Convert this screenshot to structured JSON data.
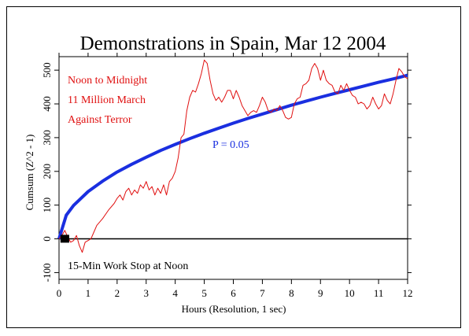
{
  "chart_data": {
    "type": "line",
    "title": "Demonstrations in Spain, Mar 12 2004",
    "xlabel": "Hours (Resolution, 1 sec)",
    "ylabel": "Cumsum (Z^2 - 1)",
    "xlim": [
      0,
      12
    ],
    "ylim": [
      -120,
      540
    ],
    "x_ticks": [
      0,
      1,
      2,
      3,
      4,
      5,
      6,
      7,
      8,
      9,
      10,
      11,
      12
    ],
    "y_ticks": [
      -100,
      0,
      100,
      200,
      300,
      400,
      500
    ],
    "grid": false,
    "annotations": {
      "event_lines": [
        "Noon to Midnight",
        "11 Million March",
        "Against Terror"
      ],
      "probability": "P = 0.05",
      "note": "15-Min Work Stop at Noon"
    },
    "colors": {
      "cumsum": "#e01010",
      "probability_envelope": "#1a2fe0",
      "zero_line": "#000000",
      "annotation_red": "#e01010",
      "annotation_blue": "#1a2fe0"
    },
    "series": [
      {
        "key": "cumsum",
        "x": [
          0,
          0.1,
          0.2,
          0.3,
          0.4,
          0.5,
          0.6,
          0.7,
          0.8,
          0.9,
          1.0,
          1.1,
          1.2,
          1.3,
          1.5,
          1.7,
          1.9,
          2.0,
          2.1,
          2.2,
          2.3,
          2.4,
          2.5,
          2.6,
          2.7,
          2.8,
          2.9,
          3.0,
          3.1,
          3.2,
          3.3,
          3.4,
          3.5,
          3.6,
          3.7,
          3.8,
          3.9,
          4.0,
          4.1,
          4.2,
          4.3,
          4.4,
          4.5,
          4.6,
          4.7,
          4.8,
          4.9,
          5.0,
          5.1,
          5.2,
          5.3,
          5.4,
          5.5,
          5.6,
          5.7,
          5.8,
          5.9,
          6.0,
          6.1,
          6.2,
          6.3,
          6.4,
          6.5,
          6.6,
          6.7,
          6.8,
          6.9,
          7.0,
          7.1,
          7.2,
          7.3,
          7.4,
          7.5,
          7.6,
          7.7,
          7.8,
          7.9,
          8.0,
          8.1,
          8.2,
          8.3,
          8.4,
          8.5,
          8.6,
          8.7,
          8.8,
          8.9,
          9.0,
          9.1,
          9.2,
          9.3,
          9.4,
          9.5,
          9.6,
          9.7,
          9.8,
          9.9,
          10.0,
          10.1,
          10.2,
          10.3,
          10.4,
          10.5,
          10.6,
          10.7,
          10.8,
          10.9,
          11.0,
          11.1,
          11.2,
          11.3,
          11.4,
          11.5,
          11.6,
          11.7,
          11.8,
          11.9,
          12.0
        ],
        "y": [
          0,
          10,
          25,
          5,
          -10,
          -5,
          10,
          -20,
          -40,
          -10,
          -5,
          0,
          20,
          40,
          60,
          85,
          105,
          120,
          130,
          115,
          140,
          150,
          130,
          145,
          135,
          160,
          150,
          170,
          145,
          155,
          130,
          150,
          135,
          160,
          130,
          170,
          180,
          200,
          240,
          300,
          310,
          380,
          420,
          440,
          435,
          460,
          490,
          530,
          520,
          470,
          430,
          410,
          420,
          405,
          420,
          440,
          440,
          415,
          440,
          420,
          395,
          380,
          365,
          375,
          380,
          375,
          395,
          420,
          405,
          380,
          375,
          385,
          380,
          395,
          380,
          360,
          355,
          360,
          400,
          415,
          420,
          455,
          460,
          470,
          505,
          520,
          505,
          470,
          500,
          470,
          460,
          455,
          435,
          430,
          455,
          440,
          460,
          440,
          425,
          420,
          400,
          405,
          400,
          385,
          395,
          420,
          400,
          385,
          395,
          430,
          410,
          400,
          430,
          470,
          505,
          495,
          480,
          475
        ]
      },
      {
        "key": "probability_envelope",
        "name": "P = 0.05",
        "x": [
          0,
          0.25,
          0.5,
          1,
          1.5,
          2,
          2.5,
          3,
          3.5,
          4,
          4.5,
          5,
          5.5,
          6,
          6.5,
          7,
          7.5,
          8,
          8.5,
          9,
          9.5,
          10,
          10.5,
          11,
          11.5,
          12
        ],
        "y": [
          0,
          70,
          99,
          140,
          171,
          198,
          221,
          242,
          262,
          280,
          297,
          313,
          328,
          343,
          357,
          370,
          383,
          396,
          408,
          420,
          431,
          442,
          453,
          464,
          474,
          485
        ]
      },
      {
        "key": "zero_line",
        "x": [
          0,
          12
        ],
        "y": [
          0,
          0
        ]
      }
    ]
  }
}
